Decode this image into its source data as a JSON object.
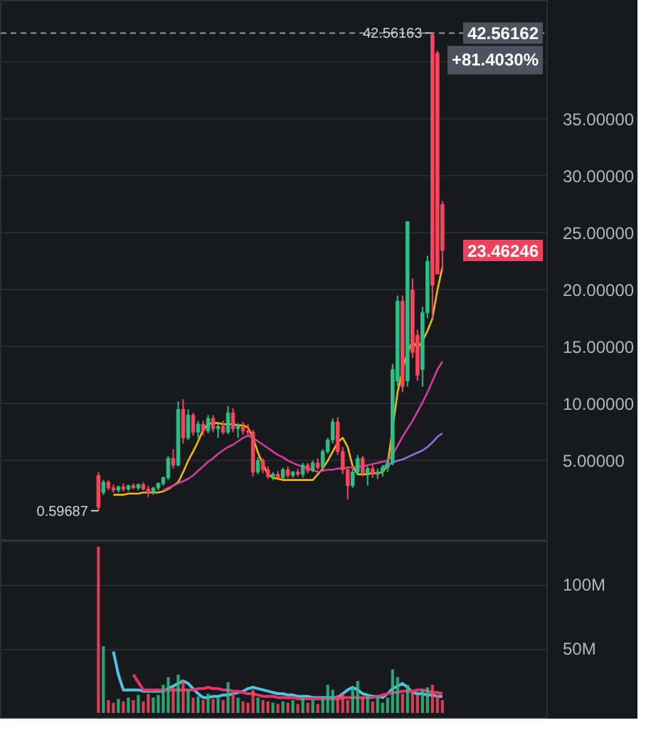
{
  "chart_data": [
    {
      "type": "candlestick",
      "categories": [
        null,
        null,
        null,
        null,
        null,
        null,
        null,
        null,
        null,
        null,
        null,
        null,
        null,
        null,
        null,
        null,
        null,
        null,
        null,
        null,
        null,
        null,
        null,
        null,
        null,
        null,
        null,
        null,
        null,
        null,
        null,
        null,
        null,
        null,
        null,
        null,
        null,
        null,
        null,
        null,
        null,
        null,
        null,
        null,
        null,
        null,
        null,
        null,
        null,
        null,
        null,
        null,
        null,
        null,
        null,
        null,
        null,
        null,
        null,
        null,
        null,
        null,
        null,
        null,
        null,
        null,
        null,
        null,
        null,
        null
      ],
      "ohlc": [
        [
          3.7,
          4.0,
          0.59687,
          0.9
        ],
        [
          2.2,
          3.3,
          2.0,
          3.1
        ],
        [
          3.1,
          3.3,
          2.4,
          2.6
        ],
        [
          2.6,
          2.9,
          2.2,
          2.4
        ],
        [
          2.4,
          2.8,
          2.2,
          2.7
        ],
        [
          2.7,
          3.0,
          2.3,
          2.5
        ],
        [
          2.5,
          2.9,
          2.3,
          2.8
        ],
        [
          2.8,
          3.0,
          2.5,
          2.6
        ],
        [
          2.6,
          3.0,
          2.4,
          2.9
        ],
        [
          2.9,
          3.1,
          2.4,
          2.5
        ],
        [
          2.5,
          2.8,
          1.8,
          2.2
        ],
        [
          2.2,
          2.7,
          2.0,
          2.6
        ],
        [
          2.6,
          3.1,
          2.4,
          3.0
        ],
        [
          3.0,
          3.6,
          2.8,
          3.5
        ],
        [
          3.5,
          5.4,
          3.3,
          5.2
        ],
        [
          5.2,
          6.0,
          4.3,
          4.6
        ],
        [
          4.6,
          10.2,
          4.5,
          9.5
        ],
        [
          9.5,
          10.4,
          6.5,
          7.0
        ],
        [
          7.0,
          9.5,
          6.8,
          9.0
        ],
        [
          9.0,
          9.2,
          7.2,
          7.5
        ],
        [
          7.5,
          8.5,
          7.0,
          8.2
        ],
        [
          8.2,
          8.5,
          7.2,
          7.6
        ],
        [
          7.6,
          9.0,
          7.4,
          8.7
        ],
        [
          8.7,
          9.0,
          7.5,
          7.8
        ],
        [
          7.8,
          8.3,
          7.0,
          8.0
        ],
        [
          8.0,
          8.5,
          7.3,
          7.5
        ],
        [
          7.5,
          9.8,
          7.3,
          9.2
        ],
        [
          9.2,
          9.6,
          7.5,
          7.8
        ],
        [
          7.8,
          8.3,
          7.0,
          8.0
        ],
        [
          8.0,
          8.4,
          7.3,
          7.6
        ],
        [
          7.6,
          8.2,
          7.2,
          7.5
        ],
        [
          7.5,
          7.7,
          3.6,
          4.0
        ],
        [
          4.0,
          5.3,
          3.8,
          5.0
        ],
        [
          5.0,
          5.2,
          3.9,
          4.2
        ],
        [
          4.2,
          4.5,
          3.4,
          3.6
        ],
        [
          3.6,
          4.0,
          3.3,
          3.8
        ],
        [
          3.8,
          4.1,
          3.4,
          3.5
        ],
        [
          3.5,
          4.4,
          3.4,
          4.2
        ],
        [
          4.2,
          4.5,
          3.5,
          3.7
        ],
        [
          3.7,
          4.1,
          3.5,
          4.0
        ],
        [
          4.0,
          4.3,
          3.6,
          3.8
        ],
        [
          3.8,
          4.8,
          3.5,
          4.6
        ],
        [
          4.6,
          4.8,
          3.9,
          4.1
        ],
        [
          4.1,
          5.0,
          4.0,
          4.8
        ],
        [
          4.8,
          5.2,
          4.2,
          4.4
        ],
        [
          4.4,
          6.0,
          4.3,
          5.8
        ],
        [
          5.8,
          7.0,
          5.6,
          6.8
        ],
        [
          6.8,
          8.7,
          6.5,
          8.4
        ],
        [
          8.4,
          8.8,
          5.5,
          5.8
        ],
        [
          5.8,
          6.2,
          3.8,
          4.2
        ],
        [
          4.2,
          4.5,
          1.6,
          2.8
        ],
        [
          2.8,
          4.3,
          2.6,
          4.0
        ],
        [
          4.0,
          5.5,
          3.8,
          5.2
        ],
        [
          5.2,
          5.4,
          3.6,
          3.9
        ],
        [
          3.9,
          4.5,
          2.8,
          4.3
        ],
        [
          4.3,
          4.6,
          3.5,
          3.8
        ],
        [
          3.8,
          4.3,
          3.4,
          4.0
        ],
        [
          4.0,
          4.6,
          3.6,
          4.4
        ],
        [
          4.4,
          5.2,
          4.0,
          4.8
        ],
        [
          4.8,
          13.5,
          4.6,
          13.0
        ],
        [
          12.0,
          19.5,
          11.5,
          19.0
        ],
        [
          19.0,
          19.5,
          11.0,
          11.5
        ],
        [
          12.0,
          26.0,
          11.5,
          26.0
        ],
        [
          20.0,
          21.0,
          14.0,
          14.5
        ],
        [
          16.0,
          16.5,
          12.0,
          12.5
        ],
        [
          13.0,
          18.5,
          11.5,
          18.0
        ],
        [
          18.0,
          23.0,
          17.5,
          22.5
        ],
        [
          42.4,
          42.56163,
          17.5,
          20.4
        ],
        [
          40.8,
          41.0,
          21.4,
          21.4
        ],
        [
          27.5,
          27.8,
          21.6,
          23.46246
        ]
      ],
      "colors": [
        "#f6465d",
        "#2ebd85",
        "#f6465d",
        "#f6465d",
        "#2ebd85",
        "#f6465d",
        "#2ebd85",
        "#f6465d",
        "#2ebd85",
        "#f6465d",
        "#f6465d",
        "#2ebd85",
        "#2ebd85",
        "#2ebd85",
        "#2ebd85",
        "#f6465d",
        "#2ebd85",
        "#f6465d",
        "#2ebd85",
        "#f6465d",
        "#2ebd85",
        "#f6465d",
        "#2ebd85",
        "#f6465d",
        "#2ebd85",
        "#f6465d",
        "#2ebd85",
        "#f6465d",
        "#2ebd85",
        "#f6465d",
        "#f6465d",
        "#f6465d",
        "#2ebd85",
        "#f6465d",
        "#f6465d",
        "#2ebd85",
        "#f6465d",
        "#2ebd85",
        "#f6465d",
        "#2ebd85",
        "#f6465d",
        "#2ebd85",
        "#f6465d",
        "#2ebd85",
        "#f6465d",
        "#2ebd85",
        "#2ebd85",
        "#2ebd85",
        "#f6465d",
        "#f6465d",
        "#f6465d",
        "#2ebd85",
        "#2ebd85",
        "#f6465d",
        "#2ebd85",
        "#f6465d",
        "#2ebd85",
        "#2ebd85",
        "#2ebd85",
        "#2ebd85",
        "#2ebd85",
        "#f6465d",
        "#2ebd85",
        "#f6465d",
        "#f6465d",
        "#2ebd85",
        "#2ebd85",
        "#f6465d",
        "#f6465d",
        "#f6465d"
      ],
      "series": [
        {
          "type": "line",
          "color": "#f0b90b",
          "values": [
            null,
            null,
            null,
            2.0,
            2.0,
            2.0,
            2.1,
            2.1,
            2.1,
            2.2,
            2.2,
            2.2,
            2.2,
            2.3,
            2.5,
            2.8,
            3.1,
            4.0,
            5.0,
            5.8,
            6.7,
            7.7,
            8.2,
            8.3,
            8.3,
            8.2,
            8.2,
            8.2,
            8.1,
            8.1,
            7.9,
            7.0,
            5.7,
            4.7,
            3.8,
            3.5,
            3.4,
            3.3,
            3.3,
            3.3,
            3.3,
            3.3,
            3.3,
            3.3,
            3.8,
            4.3,
            5.0,
            5.8,
            6.6,
            7.0,
            6.2,
            4.5,
            3.8,
            3.8,
            3.8,
            3.9,
            3.9,
            4.0,
            4.6,
            null,
            11.0,
            13.0,
            14.5,
            15.5,
            14.9,
            15.5,
            16.4,
            17.5,
            20.0,
            22.0
          ]
        },
        {
          "type": "line",
          "color": "#d63a9e",
          "values": [
            null,
            null,
            null,
            null,
            null,
            null,
            null,
            null,
            null,
            null,
            null,
            null,
            null,
            2.4,
            2.6,
            2.8,
            3.0,
            3.2,
            3.4,
            3.7,
            4.1,
            4.5,
            4.9,
            5.2,
            5.6,
            5.9,
            6.2,
            6.4,
            6.7,
            7.0,
            7.2,
            7.0,
            6.7,
            6.4,
            6.1,
            5.8,
            5.5,
            5.3,
            5.0,
            4.8,
            4.6,
            4.5,
            4.3,
            4.2,
            4.0,
            4.1,
            4.2,
            4.2,
            4.3,
            4.3,
            4.4,
            4.4,
            4.5,
            4.5,
            4.6,
            4.7,
            4.8,
            4.9,
            5.0,
            5.5,
            6.3,
            7.1,
            7.8,
            8.5,
            9.3,
            10.1,
            11.0,
            12.0,
            13.0,
            13.7
          ]
        },
        {
          "type": "line",
          "color": "#8e6ee0",
          "values": [
            null,
            null,
            null,
            null,
            null,
            null,
            null,
            null,
            null,
            null,
            null,
            null,
            null,
            null,
            null,
            null,
            null,
            null,
            null,
            null,
            null,
            null,
            null,
            null,
            null,
            null,
            null,
            null,
            null,
            null,
            null,
            null,
            null,
            null,
            null,
            null,
            null,
            null,
            null,
            null,
            null,
            null,
            null,
            null,
            null,
            null,
            null,
            null,
            null,
            null,
            null,
            null,
            null,
            null,
            null,
            null,
            null,
            4.5,
            4.6,
            4.8,
            5.0,
            5.1,
            5.3,
            5.5,
            5.7,
            5.9,
            6.2,
            6.6,
            7.1,
            7.4
          ]
        }
      ],
      "ylim": [
        -2.1,
        45.4
      ],
      "yticks": [
        {
          "value": 5,
          "label": "5.00000"
        },
        {
          "value": 10,
          "label": "10.00000"
        },
        {
          "value": 15,
          "label": "15.00000"
        },
        {
          "value": 20,
          "label": "20.00000"
        },
        {
          "value": 25,
          "label": "25.00000"
        },
        {
          "value": 30,
          "label": "30.00000"
        },
        {
          "value": 35,
          "label": "35.00000"
        },
        {
          "value": 40,
          "label": null
        }
      ],
      "tick_labels": "y",
      "grid": "y",
      "ref_lines": [
        {
          "axis": "y",
          "value": 42.56162,
          "label": "42.56162",
          "color": "#9598a1",
          "line_style": "dashed"
        }
      ],
      "annotations": [
        "+81.4030%",
        {
          "text": "42.56163",
          "y": 42.56163
        },
        "0.59687",
        "23.46246"
      ]
    },
    {
      "type": "bar",
      "categories": [
        null,
        null,
        null,
        null,
        null,
        null,
        null,
        null,
        null,
        null,
        null,
        null,
        null,
        null,
        null,
        null,
        null,
        null,
        null,
        null,
        null,
        null,
        null,
        null,
        null,
        null,
        null,
        null,
        null,
        null,
        null,
        null,
        null,
        null,
        null,
        null,
        null,
        null,
        null,
        null,
        null,
        null,
        null,
        null,
        null,
        null,
        null,
        null,
        null,
        null,
        null,
        null,
        null,
        null,
        null,
        null,
        null,
        null,
        null,
        null,
        null,
        null,
        null,
        null,
        null,
        null,
        null,
        null,
        null,
        null
      ],
      "values": [
        130,
        52,
        10,
        8,
        11,
        9,
        12,
        10,
        14,
        9,
        15,
        12,
        14,
        22,
        28,
        20,
        30,
        25,
        18,
        12,
        13,
        10,
        15,
        11,
        12,
        10,
        24,
        16,
        12,
        9,
        8,
        18,
        12,
        10,
        9,
        8,
        7,
        9,
        8,
        10,
        7,
        12,
        8,
        10,
        7,
        12,
        22,
        18,
        14,
        15,
        10,
        20,
        25,
        12,
        14,
        9,
        13,
        8,
        12,
        34,
        28,
        15,
        22,
        16,
        14,
        18,
        20,
        22,
        14,
        10
      ],
      "colors": [
        "#f6465d",
        "#2ebd85",
        "#f6465d",
        "#f6465d",
        "#2ebd85",
        "#f6465d",
        "#2ebd85",
        "#f6465d",
        "#2ebd85",
        "#f6465d",
        "#f6465d",
        "#2ebd85",
        "#2ebd85",
        "#2ebd85",
        "#2ebd85",
        "#f6465d",
        "#2ebd85",
        "#f6465d",
        "#2ebd85",
        "#f6465d",
        "#2ebd85",
        "#f6465d",
        "#2ebd85",
        "#f6465d",
        "#2ebd85",
        "#f6465d",
        "#2ebd85",
        "#f6465d",
        "#2ebd85",
        "#f6465d",
        "#f6465d",
        "#f6465d",
        "#2ebd85",
        "#f6465d",
        "#f6465d",
        "#2ebd85",
        "#f6465d",
        "#2ebd85",
        "#f6465d",
        "#2ebd85",
        "#f6465d",
        "#2ebd85",
        "#f6465d",
        "#2ebd85",
        "#f6465d",
        "#2ebd85",
        "#2ebd85",
        "#2ebd85",
        "#f6465d",
        "#f6465d",
        "#f6465d",
        "#2ebd85",
        "#2ebd85",
        "#f6465d",
        "#2ebd85",
        "#f6465d",
        "#2ebd85",
        "#2ebd85",
        "#2ebd85",
        "#2ebd85",
        "#2ebd85",
        "#f6465d",
        "#2ebd85",
        "#f6465d",
        "#f6465d",
        "#2ebd85",
        "#2ebd85",
        "#f6465d",
        "#f6465d",
        "#f6465d"
      ],
      "series": [
        {
          "type": "line",
          "color": "#4fc3e0",
          "values": [
            null,
            null,
            null,
            48,
            30,
            18,
            18,
            18,
            18,
            17,
            17,
            17,
            17,
            17,
            19,
            21,
            23,
            25,
            23,
            19,
            15,
            12,
            12,
            13,
            13,
            14,
            14,
            15,
            16,
            17,
            19,
            20,
            19,
            18,
            17,
            16,
            15,
            15,
            14,
            14,
            13,
            13,
            13,
            12,
            12,
            12,
            12,
            12,
            12,
            15,
            18,
            20,
            18,
            15,
            14,
            13,
            13,
            12,
            15,
            19,
            21,
            23,
            20,
            16,
            15,
            15,
            14,
            14,
            13,
            13
          ]
        },
        {
          "type": "line",
          "color": "#e8336a",
          "values": [
            null,
            null,
            null,
            null,
            null,
            null,
            null,
            30,
            24,
            18,
            18,
            18,
            18,
            18,
            18,
            18,
            18,
            18,
            18,
            18,
            19,
            19,
            20,
            19,
            19,
            18,
            18,
            17,
            17,
            16,
            15,
            15,
            14,
            13,
            13,
            13,
            12,
            12,
            12,
            12,
            11,
            11,
            11,
            11,
            11,
            11,
            11,
            11,
            11,
            12,
            12,
            12,
            12,
            12,
            12,
            12,
            13,
            14,
            15,
            16,
            16,
            17,
            17,
            17,
            18,
            18,
            17,
            16,
            16,
            15
          ]
        }
      ],
      "ylim": [
        -5,
        134
      ],
      "yticks": [
        {
          "value": 50,
          "label": "50M"
        },
        {
          "value": 100,
          "label": "100M"
        }
      ],
      "tick_labels": "y",
      "grid": "y"
    }
  ]
}
